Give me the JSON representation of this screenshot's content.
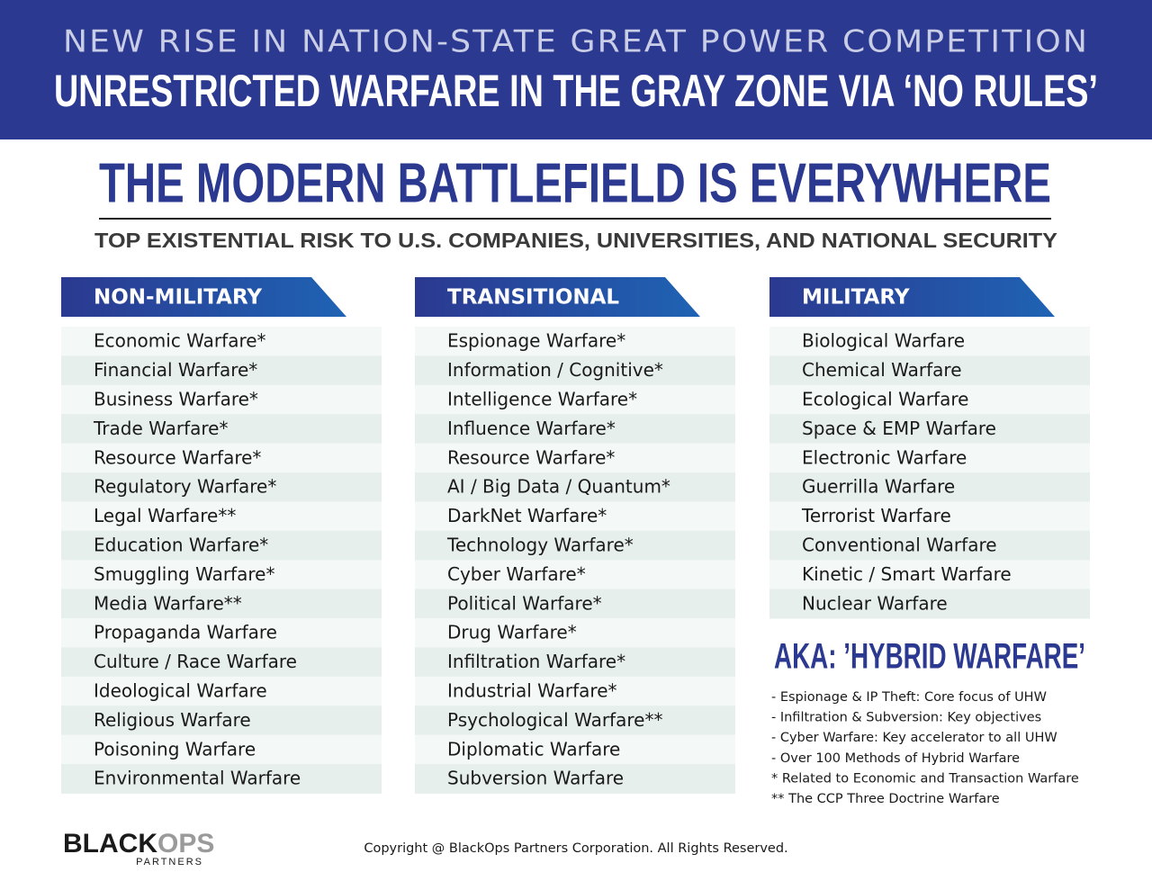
{
  "header": {
    "kicker": "NEW RISE IN NATION-STATE GREAT POWER COMPETITION",
    "title": "UNRESTRICTED WARFARE IN THE GRAY ZONE VIA ‘NO RULES’"
  },
  "headline": {
    "title": "THE MODERN BATTLEFIELD IS EVERYWHERE",
    "subtitle": "TOP EXISTENTIAL RISK TO U.S. COMPANIES, UNIVERSITIES, AND NATIONAL SECURITY"
  },
  "columns": [
    {
      "heading": "NON-MILITARY",
      "items": [
        "Economic Warfare*",
        "Financial Warfare*",
        "Business Warfare*",
        "Trade Warfare*",
        "Resource Warfare*",
        "Regulatory Warfare*",
        "Legal Warfare**",
        "Education Warfare*",
        "Smuggling Warfare*",
        "Media Warfare**",
        "Propaganda Warfare",
        "Culture / Race Warfare",
        "Ideological Warfare",
        "Religious Warfare",
        "Poisoning Warfare",
        "Environmental Warfare"
      ]
    },
    {
      "heading": "TRANSITIONAL",
      "items": [
        "Espionage Warfare*",
        "Information / Cognitive*",
        "Intelligence Warfare*",
        "Influence Warfare*",
        "Resource Warfare*",
        "AI / Big Data / Quantum*",
        "DarkNet Warfare*",
        "Technology Warfare*",
        "Cyber Warfare*",
        "Political Warfare*",
        "Drug Warfare*",
        "Infiltration Warfare*",
        "Industrial Warfare*",
        "Psychological Warfare**",
        "Diplomatic Warfare",
        "Subversion Warfare"
      ]
    },
    {
      "heading": "MILITARY",
      "items": [
        "Biological Warfare",
        "Chemical Warfare",
        "Ecological Warfare",
        "Space & EMP Warfare",
        "Electronic Warfare",
        "Guerrilla Warfare",
        "Terrorist Warfare",
        "Conventional Warfare",
        "Kinetic / Smart Warfare",
        "Nuclear Warfare"
      ]
    }
  ],
  "aka": {
    "title": "AKA: ’HYBRID WARFARE’",
    "notes": [
      "- Espionage & IP Theft: Core focus of UHW",
      "- Infiltration & Subversion: Key objectives",
      "- Cyber Warfare: Key accelerator to all UHW",
      "- Over 100 Methods of Hybrid Warfare",
      "* Related to Economic and Transaction Warfare",
      "** The CCP Three Doctrine Warfare"
    ]
  },
  "footer": {
    "logo_primary": "BLACK",
    "logo_secondary": "OPS",
    "logo_tagline": "PARTNERS",
    "copyright": "Copyright @ BlackOps Partners Corporation. All Rights Reserved."
  }
}
